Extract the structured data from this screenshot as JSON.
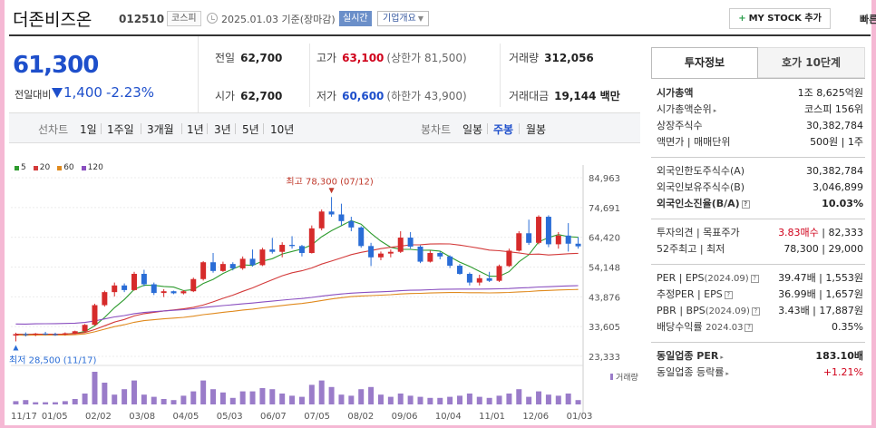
{
  "header": {
    "title": "더존비즈온",
    "code": "012510",
    "market": "코스피",
    "date_text": "2025.01.03  기준(장마감)",
    "realtime": "실시간",
    "overview": "기업개요",
    "mystock": "MY STOCK 추가",
    "quick_order": "빠른주문"
  },
  "price": {
    "current": "61,300",
    "diff_label": "전일대비",
    "diff": "1,400",
    "rate": "-2.23%"
  },
  "stats": {
    "prev_close_label": "전일",
    "prev_close": "62,700",
    "open_label": "시가",
    "open": "62,700",
    "high_label": "고가",
    "high": "63,100",
    "upper_limit": "(상한가 81,500)",
    "low_label": "저가",
    "low": "60,600",
    "lower_limit": "(하한가 43,900)",
    "volume_label": "거래량",
    "volume": "312,056",
    "amount_label": "거래대금",
    "amount": "19,144 백만"
  },
  "toolbar": {
    "line_label": "선차트",
    "line_items": [
      "1일",
      "1주일",
      "3개월",
      "1년",
      "3년",
      "5년",
      "10년"
    ],
    "candle_label": "봉차트",
    "candle_items": [
      "일봉",
      "주봉",
      "월봉"
    ],
    "active_candle": "주봉"
  },
  "chart_data": {
    "type": "candlestick",
    "legend": [
      "5",
      "20",
      "60",
      "120"
    ],
    "legend_colors": [
      "#2e9b2e",
      "#d33a3a",
      "#e08a1e",
      "#8a4fc0"
    ],
    "up_color": "#d62b2b",
    "down_color": "#2a6dd6",
    "y_ticks": [
      "84,963",
      "74,691",
      "64,420",
      "54,148",
      "43,876",
      "33,605",
      "23,333"
    ],
    "ylim": [
      23333,
      84963
    ],
    "x_ticks": [
      "11/17",
      "01/05",
      "02/02",
      "03/08",
      "04/05",
      "05/03",
      "06/07",
      "07/05",
      "08/02",
      "09/06",
      "10/04",
      "11/01",
      "12/06",
      "01/03"
    ],
    "max_label": "최고 78,300 (07/12)",
    "min_label": "최저 28,500 (11/17)",
    "volume_label": "거래량",
    "candles": [
      [
        30500,
        31500,
        28500,
        31000
      ],
      [
        31000,
        31600,
        30200,
        30800
      ],
      [
        30800,
        31400,
        30300,
        31200
      ],
      [
        31200,
        31800,
        30600,
        31000
      ],
      [
        31000,
        31500,
        30400,
        30900
      ],
      [
        30900,
        31600,
        30500,
        31300
      ],
      [
        31300,
        32200,
        31000,
        32000
      ],
      [
        32000,
        34500,
        31700,
        34200
      ],
      [
        34200,
        41500,
        34000,
        41000
      ],
      [
        41000,
        46000,
        40500,
        45500
      ],
      [
        45500,
        48800,
        44000,
        47800
      ],
      [
        47800,
        48500,
        45500,
        46200
      ],
      [
        46200,
        52500,
        46000,
        51800
      ],
      [
        51800,
        53200,
        47500,
        48200
      ],
      [
        48200,
        48800,
        44500,
        45200
      ],
      [
        45200,
        46500,
        43800,
        45800
      ],
      [
        45800,
        46000,
        44800,
        45100
      ],
      [
        45100,
        46200,
        44700,
        45800
      ],
      [
        45800,
        50500,
        45500,
        50000
      ],
      [
        50000,
        56200,
        49500,
        55800
      ],
      [
        55800,
        59000,
        52200,
        52800
      ],
      [
        52800,
        56000,
        52500,
        55200
      ],
      [
        55200,
        55800,
        53000,
        53700
      ],
      [
        53700,
        57800,
        53200,
        57000
      ],
      [
        57000,
        60200,
        54300,
        54800
      ],
      [
        54800,
        60800,
        54500,
        60200
      ],
      [
        60200,
        64200,
        58800,
        59400
      ],
      [
        59400,
        62700,
        57500,
        61800
      ],
      [
        61800,
        64800,
        60500,
        61400
      ],
      [
        61400,
        61800,
        57800,
        59000
      ],
      [
        59000,
        68500,
        58800,
        67500
      ],
      [
        67500,
        74000,
        66800,
        73300
      ],
      [
        73300,
        78300,
        71500,
        72300
      ],
      [
        72300,
        76000,
        68500,
        70000
      ],
      [
        70000,
        71500,
        66500,
        67800
      ],
      [
        67800,
        68200,
        60800,
        61400
      ],
      [
        61400,
        62500,
        54500,
        57500
      ],
      [
        57500,
        59500,
        56500,
        58800
      ],
      [
        58800,
        60200,
        57500,
        59400
      ],
      [
        59400,
        66500,
        59000,
        64300
      ],
      [
        64300,
        66200,
        60500,
        61200
      ],
      [
        61200,
        61600,
        55500,
        56000
      ],
      [
        56000,
        59800,
        55700,
        59000
      ],
      [
        59000,
        59500,
        56800,
        57800
      ],
      [
        57800,
        58200,
        53800,
        54600
      ],
      [
        54600,
        55200,
        51500,
        51800
      ],
      [
        51800,
        52300,
        47800,
        48800
      ],
      [
        48800,
        51500,
        47800,
        50300
      ],
      [
        50300,
        52500,
        49000,
        49400
      ],
      [
        49400,
        55000,
        49000,
        54500
      ],
      [
        54500,
        60500,
        54200,
        59800
      ],
      [
        59800,
        66500,
        59500,
        65800
      ],
      [
        65800,
        70500,
        61800,
        62500
      ],
      [
        62500,
        72000,
        62000,
        71500
      ],
      [
        71500,
        72000,
        61000,
        62000
      ],
      [
        62000,
        66200,
        60500,
        65000
      ],
      [
        65000,
        69300,
        59500,
        62200
      ],
      [
        62200,
        64500,
        60500,
        61300
      ]
    ],
    "volumes": [
      3,
      4,
      2,
      2,
      2,
      3,
      5,
      10,
      30,
      20,
      9,
      14,
      22,
      9,
      7,
      5,
      4,
      8,
      12,
      22,
      14,
      11,
      6,
      12,
      12,
      15,
      14,
      10,
      8,
      7,
      18,
      22,
      16,
      9,
      8,
      14,
      16,
      9,
      7,
      10,
      8,
      7,
      6,
      6,
      7,
      8,
      10,
      7,
      6,
      8,
      10,
      14,
      7,
      12,
      9,
      8,
      10,
      4
    ]
  },
  "right": {
    "tab_invest": "투자정보",
    "tab_orderbook": "호가 10단계",
    "market_cap_label": "시가총액",
    "market_cap": "1조 8,625억원",
    "rank_label": "시가총액순위",
    "rank": "코스피 156위",
    "shares_label": "상장주식수",
    "shares": "30,382,784",
    "face_label": "액면가 | 매매단위",
    "face": "500원 | 1주",
    "foreign_limit_label": "외국인한도주식수(A)",
    "foreign_limit": "30,382,784",
    "foreign_hold_label": "외국인보유주식수(B)",
    "foreign_hold": "3,046,899",
    "foreign_ratio_label": "외국인소진율(B/A)",
    "foreign_ratio": "10.03%",
    "opinion_label": "투자의견 | 목표주가",
    "opinion": "3.83매수",
    "target": "82,333",
    "w52_label": "52주최고 | 최저",
    "w52": "78,300 | 29,000",
    "per_label": "PER | EPS",
    "per_period": "(2024.09)",
    "per": "39.47배 | 1,553원",
    "est_per_label": "추정PER | EPS",
    "est_per": "36.99배 | 1,657원",
    "pbr_label": "PBR | BPS",
    "pbr_period": "(2024.09)",
    "pbr": "3.43배 | 17,887원",
    "div_label": "배당수익률",
    "div_period": "2024.03",
    "div": "0.35%",
    "sector_per_label": "동일업종 PER",
    "sector_per": "183.10배",
    "sector_rate_label": "동일업종 등락률",
    "sector_rate": "+1.21%"
  }
}
